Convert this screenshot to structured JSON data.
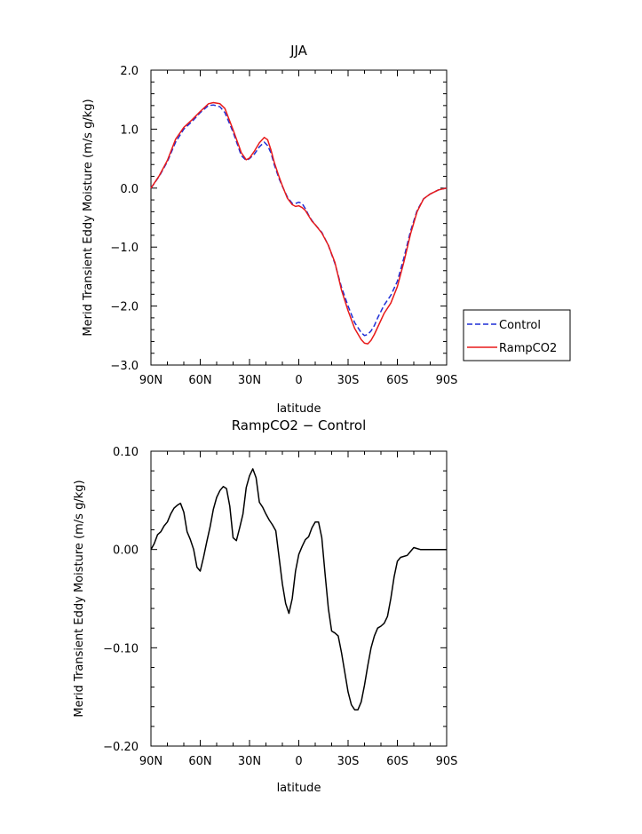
{
  "chart_data": [
    {
      "type": "line",
      "title": "JJA",
      "xlabel": "latitude",
      "ylabel": "Merid Transient Eddy Moisture (m/s g/kg)",
      "x_ticks": [
        "90N",
        "60N",
        "30N",
        "0",
        "30S",
        "60S",
        "90S"
      ],
      "x_tick_values": [
        -90,
        -60,
        -30,
        0,
        30,
        60,
        90
      ],
      "y_ticks": [
        "2.0",
        "1.0",
        "0.0",
        "−1.0",
        "−2.0",
        "−3.0"
      ],
      "y_tick_values": [
        2,
        1,
        0,
        -1,
        -2,
        -3
      ],
      "xlim": [
        -90,
        90
      ],
      "ylim": [
        -3,
        2
      ],
      "grid": false,
      "legend_position": "outside-right",
      "series": [
        {
          "name": "Control",
          "color": "#1f2fd6",
          "dash": "dashed",
          "x": [
            -90,
            -85,
            -80,
            -75,
            -70,
            -65,
            -60,
            -55,
            -52,
            -48,
            -45,
            -40,
            -35,
            -32,
            -30,
            -27,
            -24,
            -21,
            -19,
            -17,
            -15,
            -12,
            -10,
            -7,
            -4,
            -2,
            0,
            2,
            4,
            6,
            8,
            10,
            14,
            18,
            22,
            26,
            30,
            34,
            38,
            40,
            42,
            44,
            46,
            48,
            52,
            56,
            60,
            64,
            68,
            72,
            76,
            80,
            85,
            90
          ],
          "y": [
            0.0,
            0.2,
            0.45,
            0.78,
            1.0,
            1.13,
            1.28,
            1.4,
            1.41,
            1.38,
            1.28,
            0.95,
            0.55,
            0.47,
            0.5,
            0.58,
            0.7,
            0.78,
            0.72,
            0.6,
            0.4,
            0.16,
            0.03,
            -0.15,
            -0.26,
            -0.26,
            -0.24,
            -0.26,
            -0.35,
            -0.46,
            -0.55,
            -0.62,
            -0.75,
            -0.97,
            -1.28,
            -1.68,
            -2.0,
            -2.28,
            -2.45,
            -2.5,
            -2.48,
            -2.42,
            -2.33,
            -2.2,
            -1.98,
            -1.82,
            -1.58,
            -1.18,
            -0.73,
            -0.38,
            -0.18,
            -0.1,
            -0.03,
            0.0
          ]
        },
        {
          "name": "RampCO2",
          "color": "#e81a1a",
          "dash": "solid",
          "x": [
            -90,
            -85,
            -80,
            -75,
            -70,
            -65,
            -60,
            -55,
            -52,
            -48,
            -45,
            -40,
            -35,
            -32,
            -30,
            -27,
            -24,
            -21,
            -19,
            -17,
            -15,
            -12,
            -10,
            -7,
            -4,
            -2,
            0,
            2,
            4,
            6,
            8,
            10,
            14,
            18,
            22,
            26,
            30,
            34,
            38,
            40,
            42,
            44,
            46,
            48,
            52,
            56,
            60,
            64,
            68,
            72,
            76,
            80,
            85,
            90
          ],
          "y": [
            0.0,
            0.21,
            0.47,
            0.83,
            1.03,
            1.16,
            1.3,
            1.43,
            1.45,
            1.43,
            1.35,
            0.99,
            0.6,
            0.48,
            0.51,
            0.63,
            0.77,
            0.86,
            0.82,
            0.65,
            0.44,
            0.19,
            0.04,
            -0.17,
            -0.28,
            -0.31,
            -0.3,
            -0.33,
            -0.38,
            -0.47,
            -0.56,
            -0.62,
            -0.76,
            -0.97,
            -1.26,
            -1.73,
            -2.08,
            -2.38,
            -2.57,
            -2.63,
            -2.64,
            -2.58,
            -2.48,
            -2.36,
            -2.12,
            -1.95,
            -1.67,
            -1.25,
            -0.78,
            -0.4,
            -0.18,
            -0.1,
            -0.03,
            0.0
          ]
        }
      ]
    },
    {
      "type": "line",
      "title": "RampCO2 − Control",
      "xlabel": "latitude",
      "ylabel": "Merid Transient Eddy Moisture (m/s g/kg)",
      "x_ticks": [
        "90N",
        "60N",
        "30N",
        "0",
        "30S",
        "60S",
        "90S"
      ],
      "x_tick_values": [
        -90,
        -60,
        -30,
        0,
        30,
        60,
        90
      ],
      "y_ticks": [
        "0.10",
        "0.00",
        "−0.10",
        "−0.20"
      ],
      "y_tick_values": [
        0.1,
        0.0,
        -0.1,
        -0.2
      ],
      "xlim": [
        -90,
        90
      ],
      "ylim": [
        -0.2,
        0.1
      ],
      "grid": false,
      "series": [
        {
          "color": "#000000",
          "dash": "solid",
          "x": [
            -90,
            -88,
            -86,
            -84,
            -82,
            -80,
            -78,
            -76,
            -74,
            -72,
            -70,
            -68,
            -66,
            -64,
            -62,
            -60,
            -58,
            -56,
            -54,
            -52,
            -50,
            -48,
            -46,
            -44,
            -42,
            -40,
            -38,
            -36,
            -34,
            -32,
            -30,
            -28,
            -26,
            -24,
            -22,
            -20,
            -18,
            -16,
            -14,
            -12,
            -10,
            -8,
            -6,
            -4,
            -2,
            0,
            2,
            4,
            6,
            8,
            10,
            12,
            14,
            16,
            18,
            20,
            22,
            24,
            26,
            28,
            30,
            32,
            34,
            36,
            38,
            40,
            42,
            44,
            46,
            48,
            50,
            52,
            54,
            56,
            58,
            60,
            62,
            64,
            66,
            68,
            70,
            72,
            74,
            76,
            78,
            80,
            82,
            84,
            86,
            88,
            90
          ],
          "y": [
            0.0,
            0.006,
            0.015,
            0.018,
            0.024,
            0.028,
            0.036,
            0.042,
            0.045,
            0.047,
            0.038,
            0.018,
            0.01,
            0.0,
            -0.018,
            -0.022,
            -0.008,
            0.008,
            0.023,
            0.041,
            0.053,
            0.06,
            0.064,
            0.062,
            0.044,
            0.012,
            0.009,
            0.022,
            0.036,
            0.063,
            0.075,
            0.082,
            0.073,
            0.048,
            0.043,
            0.036,
            0.03,
            0.025,
            0.019,
            -0.008,
            -0.035,
            -0.055,
            -0.065,
            -0.05,
            -0.022,
            -0.005,
            0.003,
            0.01,
            0.013,
            0.022,
            0.028,
            0.028,
            0.012,
            -0.025,
            -0.06,
            -0.083,
            -0.085,
            -0.088,
            -0.105,
            -0.125,
            -0.145,
            -0.158,
            -0.163,
            -0.163,
            -0.155,
            -0.138,
            -0.118,
            -0.1,
            -0.088,
            -0.08,
            -0.078,
            -0.075,
            -0.068,
            -0.05,
            -0.028,
            -0.012,
            -0.008,
            -0.007,
            -0.006,
            -0.002,
            0.002,
            0.001,
            0.0,
            0.0,
            0.0,
            0.0,
            0.0,
            0.0,
            0.0,
            0.0,
            0.0
          ]
        }
      ]
    }
  ]
}
